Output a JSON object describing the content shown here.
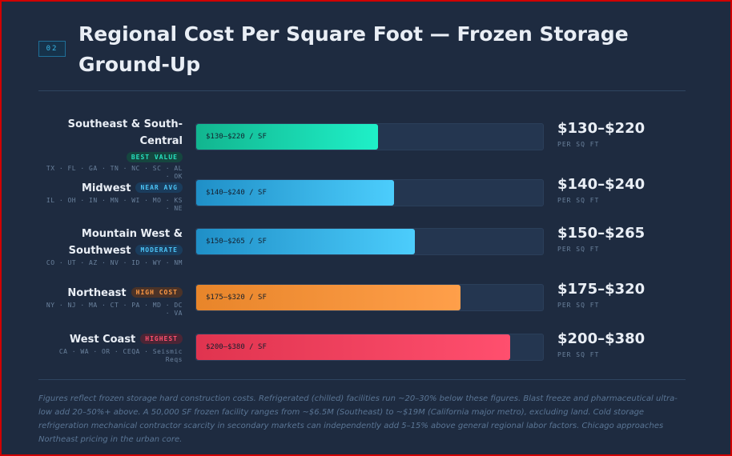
{
  "header": {
    "section_number": "02",
    "title": "Regional Cost Per Square Foot — Frozen Storage Ground-Up"
  },
  "colors": {
    "background": "#1e2b40",
    "green": "#26e3c0",
    "blue": "#4cc3f5",
    "orange": "#ff9a45",
    "red": "#ff4f6e"
  },
  "chart_data": {
    "type": "bar",
    "orientation": "horizontal",
    "title": "Regional Cost Per Square Foot — Frozen Storage Ground-Up",
    "unit": "PER SQ FT",
    "xlim": [
      0,
      420
    ],
    "categories": [
      {
        "name_lines": [
          "Southeast & South-Central"
        ],
        "tag": "BEST VALUE",
        "tag_color": "green",
        "states": "TX · FL · GA · TN · NC · SC · AL · OK",
        "low": 130,
        "high": 220,
        "bar_label": "$130–$220 / SF",
        "value_label": "$130–$220",
        "unit_label": "PER SQ FT",
        "gradient": [
          "#12b58f",
          "#1ff0c8"
        ]
      },
      {
        "name_lines": [
          "Midwest"
        ],
        "tag": "NEAR AVG",
        "tag_color": "blue",
        "states": "IL · OH · IN · MN · WI · MO · KS · NE",
        "low": 140,
        "high": 240,
        "bar_label": "$140–$240 / SF",
        "value_label": "$140–$240",
        "unit_label": "PER SQ FT",
        "gradient": [
          "#1f8fc7",
          "#4ccdfc"
        ]
      },
      {
        "name_lines": [
          "Mountain West &",
          "Southwest"
        ],
        "tag": "MODERATE",
        "tag_color": "blue",
        "states": "CO · UT · AZ · NV · ID · WY · NM",
        "low": 150,
        "high": 265,
        "bar_label": "$150–$265 / SF",
        "value_label": "$150–$265",
        "unit_label": "PER SQ FT",
        "gradient": [
          "#1f8fc7",
          "#4ccdfc"
        ]
      },
      {
        "name_lines": [
          "Northeast"
        ],
        "tag": "HIGH COST",
        "tag_color": "orange",
        "states": "NY · NJ · MA · CT · PA · MD · DC · VA",
        "low": 175,
        "high": 320,
        "bar_label": "$175–$320 / SF",
        "value_label": "$175–$320",
        "unit_label": "PER SQ FT",
        "gradient": [
          "#e8852a",
          "#ff9f4a"
        ]
      },
      {
        "name_lines": [
          "West Coast"
        ],
        "tag": "HIGHEST",
        "tag_color": "red",
        "states": "CA · WA · OR · CEQA · Seismic Reqs",
        "low": 200,
        "high": 380,
        "bar_label": "$200–$380 / SF",
        "value_label": "$200–$380",
        "unit_label": "PER SQ FT",
        "gradient": [
          "#e0344f",
          "#ff4f6e"
        ]
      }
    ]
  },
  "footnote": "Figures reflect frozen storage hard construction costs. Refrigerated (chilled) facilities run ~20–30% below these figures. Blast freeze and pharmaceutical ultra-low add 20–50%+ above. A 50,000 SF frozen facility ranges from ~$6.5M (Southeast) to ~$19M (California major metro), excluding land. Cold storage refrigeration mechanical contractor scarcity in secondary markets can independently add 5–15% above general regional labor factors. Chicago approaches Northeast pricing in the urban core."
}
